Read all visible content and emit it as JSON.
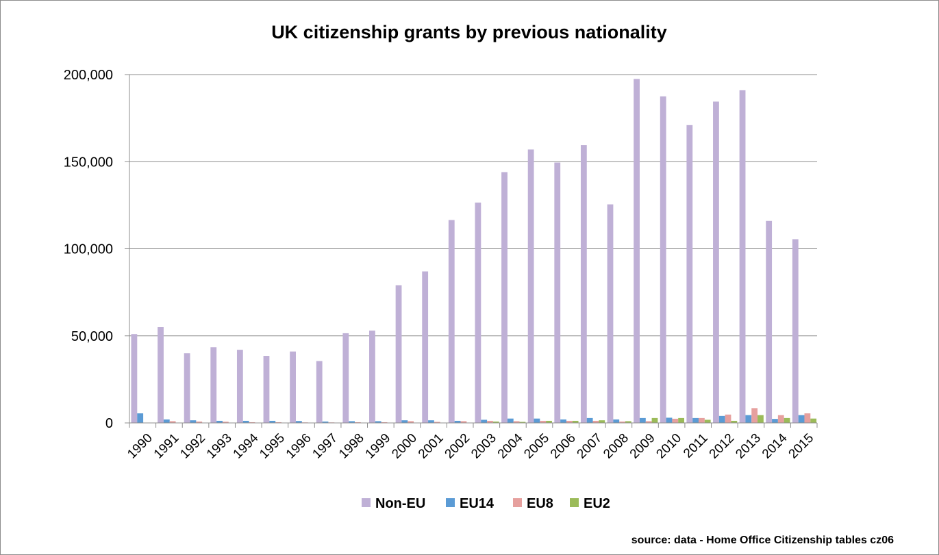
{
  "chart_data": {
    "type": "bar",
    "title": "UK citizenship grants by previous nationality",
    "source_note": "source: data - Home Office Citizenship tables cz06",
    "xlabel": "",
    "ylabel": "",
    "ylim": [
      0,
      200000
    ],
    "yticks": [
      0,
      50000,
      100000,
      150000,
      200000
    ],
    "ytick_labels": [
      "0",
      "50,000",
      "100,000",
      "150,000",
      "200,000"
    ],
    "grid": true,
    "legend_position": "bottom",
    "categories": [
      "1990",
      "1991",
      "1992",
      "1993",
      "1994",
      "1995",
      "1996",
      "1997",
      "1998",
      "1999",
      "2000",
      "2001",
      "2002",
      "2003",
      "2004",
      "2005",
      "2006",
      "2007",
      "2008",
      "2009",
      "2010",
      "2011",
      "2012",
      "2013",
      "2014",
      "2015"
    ],
    "series": [
      {
        "name": "Non-EU",
        "color": "#bfb0d6",
        "values": [
          51000,
          55000,
          40000,
          43500,
          42000,
          38500,
          41000,
          35500,
          51500,
          53000,
          79000,
          87000,
          116500,
          126500,
          144000,
          157000,
          149500,
          159500,
          125500,
          197500,
          187500,
          171000,
          184500,
          191000,
          116000,
          105500
        ]
      },
      {
        "name": "EU14",
        "color": "#5b9bd5",
        "values": [
          5500,
          2000,
          1500,
          1200,
          1200,
          1200,
          1100,
          800,
          1000,
          1000,
          1500,
          1500,
          1200,
          1800,
          2500,
          2500,
          2000,
          2800,
          2000,
          2800,
          3000,
          2800,
          4000,
          4500,
          2300,
          4500
        ]
      },
      {
        "name": "EU8",
        "color": "#e6a09e",
        "values": [
          0,
          1000,
          800,
          700,
          400,
          400,
          300,
          300,
          400,
          400,
          1000,
          600,
          1000,
          1200,
          1000,
          1200,
          1200,
          1200,
          800,
          1000,
          2400,
          2800,
          4800,
          8500,
          4500,
          5500
        ]
      },
      {
        "name": "EU2",
        "color": "#9bbb59",
        "values": [
          0,
          0,
          0,
          0,
          0,
          0,
          0,
          0,
          0,
          0,
          0,
          0,
          0,
          800,
          600,
          1200,
          1200,
          1500,
          1000,
          2800,
          2800,
          1800,
          1200,
          4500,
          2800,
          2500
        ]
      }
    ]
  }
}
